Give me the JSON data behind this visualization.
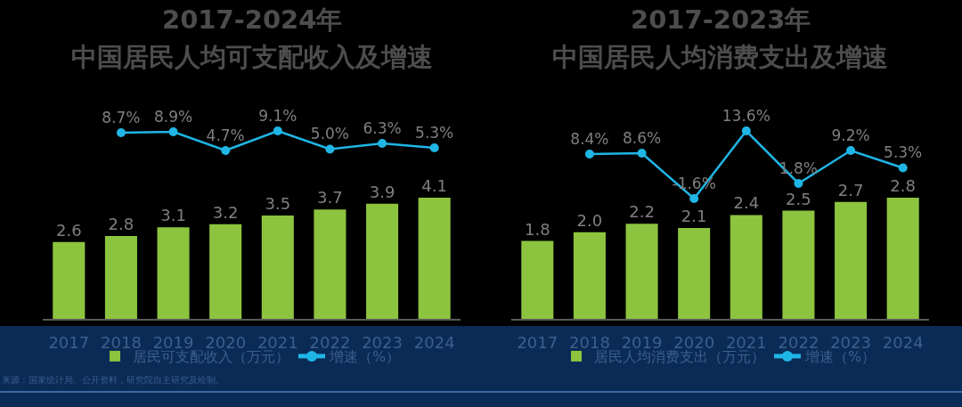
{
  "chart_data": [
    {
      "type": "line",
      "title": "2017-2024年",
      "subtitle": "中国居民人均可支配收入及增速",
      "categories": [
        "2017",
        "2018",
        "2019",
        "2020",
        "2021",
        "2022",
        "2023",
        "2024"
      ],
      "series": [
        {
          "name": "增速（%）",
          "color": "#1fb6e6",
          "values": [
            null,
            8.7,
            8.9,
            4.7,
            9.1,
            5.0,
            6.3,
            5.3
          ],
          "value_labels": [
            null,
            "8.7%",
            "8.9%",
            "4.7%",
            "9.1%",
            "5.0%",
            "6.3%",
            "5.3%"
          ]
        }
      ],
      "legend": "bottom",
      "tick_labels": false,
      "marker": "circle"
    },
    {
      "type": "bar",
      "categories": [
        "2017",
        "2018",
        "2019",
        "2020",
        "2021",
        "2022",
        "2023",
        "2024"
      ],
      "series": [
        {
          "name": "居民可支配收入（万元）",
          "color": "#8cc43f",
          "values": [
            2.6,
            2.8,
            3.1,
            3.2,
            3.5,
            3.7,
            3.9,
            4.1
          ],
          "value_labels": [
            "2.6",
            "2.8",
            "3.1",
            "3.2",
            "3.5",
            "3.7",
            "3.9",
            "4.1"
          ]
        }
      ],
      "legend": "bottom",
      "tick_labels": "x",
      "annotations": [
        "来源：国家统计局、公开资料，研究院自主研究及绘制。"
      ]
    },
    {
      "type": "line",
      "title": "2017-2023年",
      "subtitle": "中国居民人均消费支出及增速",
      "categories": [
        "2017",
        "2018",
        "2019",
        "2020",
        "2021",
        "2022",
        "2023",
        "2024"
      ],
      "series": [
        {
          "name": "增速（%）",
          "color": "#1fb6e6",
          "values": [
            null,
            8.4,
            8.6,
            -1.6,
            13.6,
            1.8,
            9.2,
            5.3
          ],
          "value_labels": [
            null,
            "8.4%",
            "8.6%",
            "-1.6%",
            "13.6%",
            "1.8%",
            "9.2%",
            "5.3%"
          ]
        }
      ],
      "legend": "bottom",
      "tick_labels": false,
      "marker": "circle"
    },
    {
      "type": "bar",
      "categories": [
        "2017",
        "2018",
        "2019",
        "2020",
        "2021",
        "2022",
        "2023",
        "2024"
      ],
      "series": [
        {
          "name": "居民人均消费支出（万元）",
          "color": "#8cc43f",
          "values": [
            1.8,
            2.0,
            2.2,
            2.1,
            2.4,
            2.5,
            2.7,
            2.8
          ],
          "value_labels": [
            "1.8",
            "2.0",
            "2.2",
            "2.1",
            "2.4",
            "2.5",
            "2.7",
            "2.8"
          ]
        }
      ],
      "legend": "bottom",
      "tick_labels": "x"
    }
  ]
}
